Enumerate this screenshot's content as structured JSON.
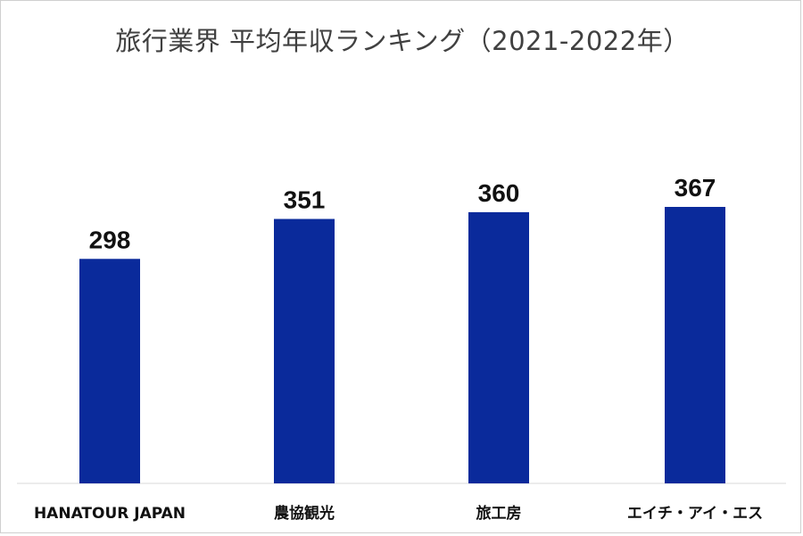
{
  "chart_data": {
    "type": "bar",
    "title": "旅行業界 平均年収ランキング（2021-2022年）",
    "categories": [
      "HANATOUR JAPAN",
      "農協観光",
      "旅工房",
      "エイチ・アイ・エス"
    ],
    "values": [
      298,
      351,
      360,
      367
    ],
    "xlabel": "",
    "ylabel": "",
    "ylim": [
      0,
      420
    ],
    "grid": false,
    "legend": "none",
    "data_labels": true,
    "bar_color": "#0a2a9b"
  }
}
